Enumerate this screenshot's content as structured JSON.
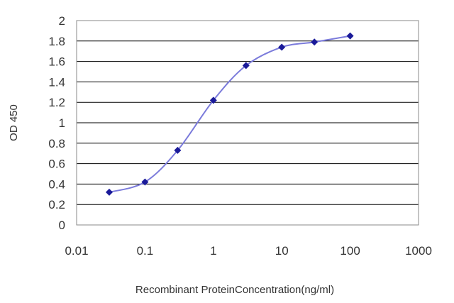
{
  "chart_data": {
    "type": "line",
    "xlabel": "Recombinant ProteinConcentration(ng/ml)",
    "ylabel": "OD 450",
    "x_scale": "log",
    "xlim": [
      0.01,
      1000
    ],
    "ylim": [
      0,
      2
    ],
    "x_ticks": [
      {
        "value": 0.01,
        "label": "0.01"
      },
      {
        "value": 0.1,
        "label": "0.1"
      },
      {
        "value": 1,
        "label": "1"
      },
      {
        "value": 10,
        "label": "10"
      },
      {
        "value": 100,
        "label": "100"
      },
      {
        "value": 1000,
        "label": "1000"
      }
    ],
    "y_ticks": [
      {
        "value": 0,
        "label": "0"
      },
      {
        "value": 0.2,
        "label": "0.2"
      },
      {
        "value": 0.4,
        "label": "0.4"
      },
      {
        "value": 0.6,
        "label": "0.6"
      },
      {
        "value": 0.8,
        "label": "0.8"
      },
      {
        "value": 1,
        "label": "1"
      },
      {
        "value": 1.2,
        "label": "1.2"
      },
      {
        "value": 1.4,
        "label": "1.4"
      },
      {
        "value": 1.6,
        "label": "1.6"
      },
      {
        "value": 1.8,
        "label": "1.8"
      },
      {
        "value": 2,
        "label": "2"
      }
    ],
    "grid": "horizontal",
    "legend": "none",
    "series": [
      {
        "x": [
          0.03,
          0.1,
          0.3,
          1,
          3,
          10,
          30,
          100
        ],
        "y": [
          0.32,
          0.42,
          0.73,
          1.22,
          1.56,
          1.74,
          1.79,
          1.85
        ],
        "color": "#2b2bb3",
        "marker": "diamond"
      }
    ],
    "colors": {
      "line": "#7b7bdb",
      "marker": "#1a1a99",
      "grid": "#000000",
      "frame": "#888888",
      "text": "#333333"
    }
  }
}
